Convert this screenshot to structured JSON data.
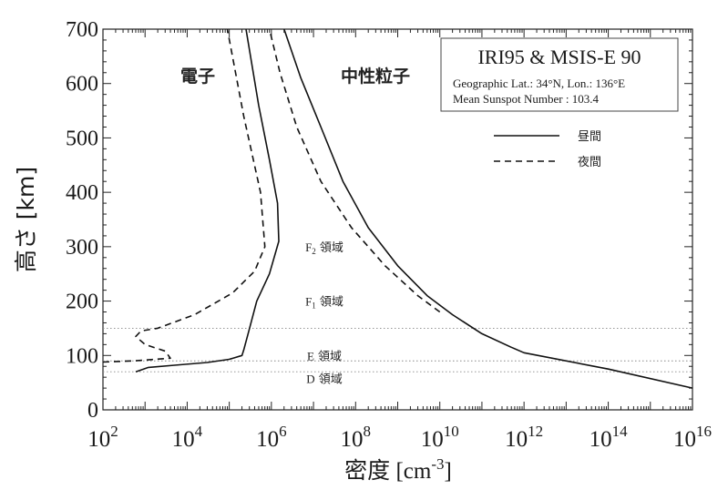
{
  "chart_data": {
    "type": "line",
    "xlabel_main": "密度",
    "xlabel_unit_open": " [cm",
    "xlabel_unit_sup": "-3",
    "xlabel_unit_close": "]",
    "ylabel": "高さ [km]",
    "x_scale": "log",
    "xlim": [
      100,
      10000000000000000
    ],
    "ylim": [
      0,
      700
    ],
    "x_ticks": [
      {
        "base": "10",
        "exp": "2",
        "value": 100
      },
      {
        "base": "10",
        "exp": "4",
        "value": 10000
      },
      {
        "base": "10",
        "exp": "6",
        "value": 1000000
      },
      {
        "base": "10",
        "exp": "8",
        "value": 100000000
      },
      {
        "base": "10",
        "exp": "10",
        "value": 10000000000
      },
      {
        "base": "10",
        "exp": "12",
        "value": 1000000000000
      },
      {
        "base": "10",
        "exp": "14",
        "value": 100000000000000
      },
      {
        "base": "10",
        "exp": "16",
        "value": 10000000000000000
      }
    ],
    "y_ticks": [
      {
        "label": "0",
        "value": 0
      },
      {
        "label": "100",
        "value": 100
      },
      {
        "label": "200",
        "value": 200
      },
      {
        "label": "300",
        "value": 300
      },
      {
        "label": "400",
        "value": 400
      },
      {
        "label": "500",
        "value": 500
      },
      {
        "label": "600",
        "value": 600
      },
      {
        "label": "700",
        "value": 700
      }
    ],
    "grid": false,
    "reference_lines": [
      {
        "altitude": 150
      },
      {
        "altitude": 90
      },
      {
        "altitude": 70
      }
    ],
    "series": [
      {
        "group": "electron",
        "style": "solid",
        "points": [
          {
            "x": 600,
            "y": 70
          },
          {
            "x": 1200,
            "y": 78
          },
          {
            "x": 5000,
            "y": 82
          },
          {
            "x": 30000,
            "y": 87
          },
          {
            "x": 100000,
            "y": 93
          },
          {
            "x": 200000,
            "y": 100
          },
          {
            "x": 220000,
            "y": 110
          },
          {
            "x": 280000,
            "y": 140
          },
          {
            "x": 450000,
            "y": 200
          },
          {
            "x": 900000,
            "y": 250
          },
          {
            "x": 1500000,
            "y": 310
          },
          {
            "x": 1400000,
            "y": 380
          },
          {
            "x": 900000,
            "y": 460
          },
          {
            "x": 500000,
            "y": 560
          },
          {
            "x": 250000,
            "y": 700
          }
        ]
      },
      {
        "group": "electron",
        "style": "dashed",
        "points": [
          {
            "x": 100,
            "y": 88
          },
          {
            "x": 500,
            "y": 90
          },
          {
            "x": 4000,
            "y": 95
          },
          {
            "x": 3000,
            "y": 108
          },
          {
            "x": 1000,
            "y": 120
          },
          {
            "x": 600,
            "y": 135
          },
          {
            "x": 800,
            "y": 145
          },
          {
            "x": 2000,
            "y": 150
          },
          {
            "x": 15000,
            "y": 175
          },
          {
            "x": 120000,
            "y": 215
          },
          {
            "x": 400000,
            "y": 255
          },
          {
            "x": 700000,
            "y": 300
          },
          {
            "x": 550000,
            "y": 400
          },
          {
            "x": 220000,
            "y": 540
          },
          {
            "x": 90000,
            "y": 700
          }
        ]
      },
      {
        "group": "neutral",
        "style": "solid",
        "points": [
          {
            "x": 10000000000000000,
            "y": 40
          },
          {
            "x": 100000000000000,
            "y": 75
          },
          {
            "x": 1000000000000,
            "y": 105
          },
          {
            "x": 500000000000,
            "y": 115
          },
          {
            "x": 100000000000,
            "y": 140
          },
          {
            "x": 20000000000,
            "y": 175
          },
          {
            "x": 5000000000,
            "y": 210
          },
          {
            "x": 1000000000,
            "y": 265
          },
          {
            "x": 200000000,
            "y": 335
          },
          {
            "x": 50000000,
            "y": 420
          },
          {
            "x": 15000000,
            "y": 520
          },
          {
            "x": 5000000,
            "y": 610
          },
          {
            "x": 2000000,
            "y": 700
          }
        ]
      },
      {
        "group": "neutral",
        "style": "dashed",
        "points": [
          {
            "x": 10000000000,
            "y": 180
          },
          {
            "x": 3000000000,
            "y": 210
          },
          {
            "x": 500000000,
            "y": 265
          },
          {
            "x": 80000000,
            "y": 335
          },
          {
            "x": 15000000,
            "y": 420
          },
          {
            "x": 4000000,
            "y": 520
          },
          {
            "x": 1600000,
            "y": 620
          },
          {
            "x": 900000,
            "y": 700
          }
        ]
      }
    ],
    "annotations": {
      "electron": "電子",
      "neutral": "中性粒子",
      "regions": [
        {
          "base": "F",
          "sub": "2",
          "text": " 領域",
          "altitude": 300
        },
        {
          "base": "F",
          "sub": "1",
          "text": " 領域",
          "altitude": 200
        },
        {
          "base": "E",
          "sub": "",
          "text": " 領域",
          "altitude": 100
        },
        {
          "base": "D",
          "sub": "",
          "text": " 領域",
          "altitude": 58
        }
      ]
    },
    "info_box": {
      "title": "IRI95 & MSIS-E 90",
      "lines": [
        "Geographic Lat.: 34°N, Lon.: 136°E",
        "Mean Sunspot Number : 103.4"
      ]
    },
    "legend": {
      "placement": "top-right",
      "items": [
        {
          "label": "昼間",
          "style": "solid"
        },
        {
          "label": "夜間",
          "style": "dashed"
        }
      ]
    }
  }
}
